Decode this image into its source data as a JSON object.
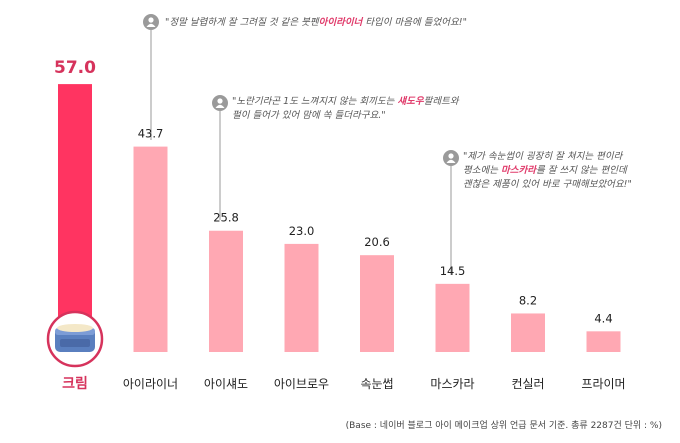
{
  "chart_data": {
    "type": "bar",
    "categories": [
      "크림",
      "아이라이너",
      "아이섀도",
      "아이브로우",
      "속눈썹",
      "마스카라",
      "컨실러",
      "프라이머"
    ],
    "values": [
      57.0,
      43.7,
      25.8,
      23.0,
      20.6,
      14.5,
      8.2,
      4.4
    ],
    "value_labels": [
      "57.0",
      "43.7",
      "25.8",
      "23.0",
      "20.6",
      "14.5",
      "8.2",
      "4.4"
    ],
    "highlight_index": 0,
    "ylim": [
      0,
      60
    ],
    "grid": false,
    "colors": {
      "highlight": "#ff3461",
      "default": "#ffa8b3",
      "highlight_label": "#d6335c",
      "label": "#222222"
    }
  },
  "quotes": [
    {
      "icon": "user-icon",
      "before": "\"정말 날렵하게 잘 그려질 것 같은 붓펜",
      "highlight": "아이라이너",
      "after": " 타입이 마음에 들었어요!\""
    },
    {
      "icon": "user-icon",
      "line1_before": "\"노란기라곤 1도 느껴지지 않는 회끼도는 ",
      "highlight": "섀도우",
      "line1_after": "팔레트와",
      "line2": "펄이 들어가 있어 맘에 쏙 들더라구요.\""
    },
    {
      "icon": "user-icon",
      "line1": "\"제가 속눈썹이 굉장히 잘 쳐지는 편이라",
      "line2_before": "평소에는 ",
      "highlight": "마스카라",
      "line2_after": "를 잘 쓰지 않는 편인데",
      "line3": "괜찮은 제품이 있어 바로 구매해보았어요!\""
    }
  ],
  "footnote": "(Base : 네이버 블로그 아이 메이크업 상위 언급 문서 기준. 총류 2287건 단위 : %)"
}
